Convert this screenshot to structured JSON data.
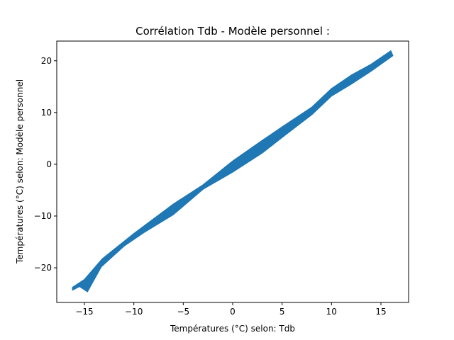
{
  "chart_data": {
    "type": "line",
    "title": "Corrélation Tdb - Modèle personnel :",
    "xlabel": "Températures (°C) selon: Tdb",
    "ylabel": "Températures (°C) selon: Modèle personnel",
    "xlim": [
      -17.8,
      17.8
    ],
    "ylim": [
      -26.7,
      23.8
    ],
    "xticks": [
      -15,
      -10,
      -5,
      0,
      5,
      10,
      15
    ],
    "yticks": [
      -20,
      -10,
      0,
      10,
      20
    ],
    "grid": false,
    "series": [
      {
        "color": "#1f77b4",
        "upper": [
          [
            -16.2,
            -23.8
          ],
          [
            -15.0,
            -22.3
          ],
          [
            -13.2,
            -18.3
          ],
          [
            -10.0,
            -13.4
          ],
          [
            -6.0,
            -7.7
          ],
          [
            -3.0,
            -4.0
          ],
          [
            0.0,
            0.6
          ],
          [
            3.0,
            4.6
          ],
          [
            5.0,
            7.2
          ],
          [
            8.0,
            11.0
          ],
          [
            10.0,
            14.6
          ],
          [
            12.0,
            17.2
          ],
          [
            14.0,
            19.3
          ],
          [
            16.0,
            21.9
          ]
        ],
        "lower": [
          [
            16.2,
            21.0
          ],
          [
            14.0,
            18.0
          ],
          [
            12.0,
            15.5
          ],
          [
            10.0,
            13.2
          ],
          [
            8.0,
            9.6
          ],
          [
            5.0,
            5.2
          ],
          [
            3.0,
            2.2
          ],
          [
            0.0,
            -1.5
          ],
          [
            -3.0,
            -4.8
          ],
          [
            -6.0,
            -9.7
          ],
          [
            -9.0,
            -13.2
          ],
          [
            -11.0,
            -15.8
          ],
          [
            -13.3,
            -19.8
          ],
          [
            -14.7,
            -24.6
          ],
          [
            -15.5,
            -23.6
          ],
          [
            -16.2,
            -24.3
          ]
        ]
      }
    ]
  }
}
